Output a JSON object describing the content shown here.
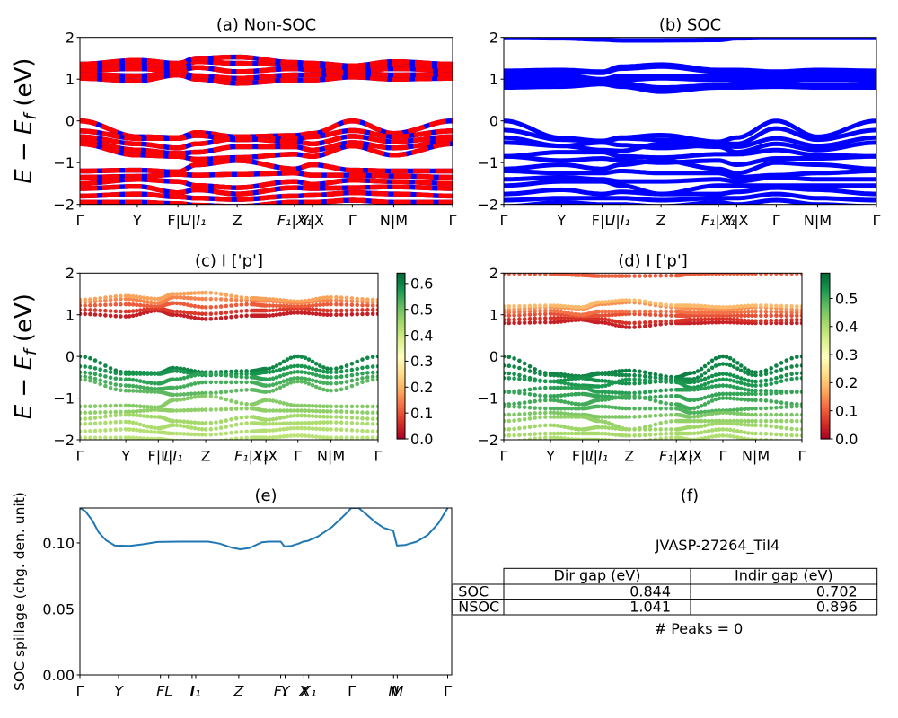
{
  "figure": {
    "background": "#ffffff"
  },
  "chart_data": [
    {
      "panel": "a",
      "type": "line",
      "subtype": "band-structure",
      "title": "(a) Non-SOC",
      "xlabel": "",
      "ylabel": {
        "main": "E − E",
        "sub": "f",
        "unit": " (eV)"
      },
      "xlim": [
        0,
        1
      ],
      "ylim": [
        -2,
        2
      ],
      "yticks": [
        -2,
        -1,
        0,
        1,
        2
      ],
      "yticklabels": [
        "−2",
        "−1",
        "0",
        "1",
        "2"
      ],
      "grid": false,
      "kpath": {
        "labels": [
          "Γ",
          "Y",
          "F|L",
          "I|I₁",
          "Z",
          "F₁|X₁",
          "Y|X",
          "Γ",
          "N|M",
          "Γ"
        ],
        "positions": [
          0,
          0.154,
          0.263,
          0.313,
          0.422,
          0.576,
          0.624,
          0.731,
          0.842,
          1.0
        ]
      },
      "line_color": "#ff0000",
      "dash_color": "#0000ff",
      "bands": [
        [
          1.02,
          0.96,
          1.1,
          1.0,
          0.9,
          0.98,
          0.98,
          1.05,
          1.0,
          1.02
        ],
        [
          1.12,
          1.08,
          1.15,
          1.08,
          1.02,
          1.1,
          1.1,
          1.15,
          1.1,
          1.12
        ],
        [
          1.22,
          1.25,
          1.2,
          1.28,
          1.18,
          1.25,
          1.22,
          1.2,
          1.25,
          1.22
        ],
        [
          1.3,
          1.38,
          1.28,
          1.42,
          1.38,
          1.35,
          1.33,
          1.28,
          1.35,
          1.3
        ],
        [
          1.36,
          1.45,
          1.38,
          1.5,
          1.53,
          1.4,
          1.38,
          1.32,
          1.42,
          1.36
        ],
        [
          0.0,
          -0.38,
          -0.4,
          -0.28,
          -0.38,
          -0.35,
          -0.3,
          0.0,
          -0.3,
          0.0
        ],
        [
          -0.24,
          -0.42,
          -0.42,
          -0.35,
          -0.45,
          -0.42,
          -0.38,
          -0.23,
          -0.38,
          -0.24
        ],
        [
          -0.38,
          -0.55,
          -0.65,
          -0.55,
          -0.42,
          -0.5,
          -0.55,
          -0.37,
          -0.5,
          -0.38
        ],
        [
          -0.48,
          -0.7,
          -0.78,
          -0.75,
          -0.62,
          -0.62,
          -0.7,
          -0.52,
          -0.65,
          -0.48
        ],
        [
          -0.55,
          -0.82,
          -0.85,
          -0.92,
          -0.88,
          -0.8,
          -0.85,
          -0.6,
          -0.82,
          -0.55
        ],
        [
          -1.2,
          -1.18,
          -1.22,
          -1.05,
          -0.95,
          -1.15,
          -1.05,
          -1.18,
          -1.2,
          -1.2
        ],
        [
          -1.35,
          -1.33,
          -1.28,
          -1.3,
          -1.28,
          -1.25,
          -1.3,
          -1.3,
          -1.32,
          -1.35
        ],
        [
          -1.5,
          -1.4,
          -1.45,
          -1.55,
          -1.6,
          -1.45,
          -1.52,
          -1.42,
          -1.45,
          -1.5
        ],
        [
          -1.62,
          -1.57,
          -1.72,
          -1.65,
          -1.75,
          -1.6,
          -1.62,
          -1.6,
          -1.58,
          -1.62
        ],
        [
          -1.8,
          -1.75,
          -1.82,
          -1.85,
          -1.88,
          -1.8,
          -1.78,
          -1.72,
          -1.75,
          -1.8
        ],
        [
          -1.95,
          -1.95,
          -1.98,
          -2.02,
          -2.05,
          -1.95,
          -1.95,
          -1.9,
          -1.95,
          -1.95
        ]
      ]
    },
    {
      "panel": "b",
      "type": "line",
      "subtype": "band-structure",
      "title": "(b) SOC",
      "xlabel": "",
      "xlim": [
        0,
        1
      ],
      "ylim": [
        -2,
        2
      ],
      "yticks": [
        -2,
        -1,
        0,
        1,
        2
      ],
      "yticklabels": [
        "−2",
        "−1",
        "0",
        "1",
        "2"
      ],
      "grid": false,
      "kpath": {
        "labels": [
          "Γ",
          "Y",
          "F|L",
          "I|I₁",
          "Z",
          "F₁|X₁",
          "Y|X",
          "Γ",
          "N|M",
          "Γ"
        ],
        "positions": [
          0,
          0.155,
          0.264,
          0.314,
          0.422,
          0.576,
          0.625,
          0.731,
          0.842,
          1.0
        ]
      },
      "line_color": "#0000ff",
      "bands": [
        [
          0.8,
          0.82,
          0.88,
          0.82,
          0.7,
          0.8,
          0.8,
          0.82,
          0.8,
          0.8
        ],
        [
          0.88,
          0.92,
          0.93,
          0.9,
          0.8,
          0.85,
          0.88,
          0.9,
          0.85,
          0.88
        ],
        [
          0.98,
          1.02,
          0.97,
          0.98,
          1.02,
          0.98,
          0.98,
          0.98,
          0.98,
          0.98
        ],
        [
          1.05,
          1.1,
          1.0,
          1.08,
          1.08,
          1.08,
          1.05,
          1.05,
          1.08,
          1.05
        ],
        [
          1.12,
          1.18,
          1.15,
          1.25,
          1.3,
          1.18,
          1.15,
          1.12,
          1.18,
          1.12
        ],
        [
          1.2,
          1.22,
          1.18,
          1.3,
          1.35,
          1.22,
          1.22,
          1.18,
          1.22,
          1.2
        ],
        [
          1.99,
          1.98,
          1.95,
          1.93,
          1.93,
          1.94,
          1.98,
          1.99,
          1.99,
          1.99
        ],
        [
          0.0,
          -0.41,
          -0.48,
          -0.4,
          -0.34,
          -0.5,
          -0.4,
          0.0,
          -0.38,
          0.0
        ],
        [
          -0.22,
          -0.45,
          -0.5,
          -0.42,
          -0.45,
          -0.55,
          -0.55,
          -0.18,
          -0.45,
          -0.22
        ],
        [
          -0.4,
          -0.6,
          -0.52,
          -0.58,
          -0.65,
          -0.58,
          -0.62,
          -0.42,
          -0.6,
          -0.4
        ],
        [
          -0.52,
          -0.6,
          -0.7,
          -0.72,
          -0.55,
          -0.62,
          -0.75,
          -0.55,
          -0.7,
          -0.52
        ],
        [
          -0.85,
          -0.75,
          -0.75,
          -0.85,
          -0.88,
          -0.8,
          -0.8,
          -0.7,
          -0.82,
          -0.85
        ],
        [
          -0.85,
          -0.95,
          -0.9,
          -0.95,
          -1.0,
          -0.95,
          -1.05,
          -0.9,
          -0.9,
          -0.85
        ],
        [
          -1.15,
          -1.05,
          -1.15,
          -1.05,
          -0.95,
          -1.15,
          -1.25,
          -1.0,
          -1.05,
          -1.15
        ],
        [
          -1.2,
          -1.25,
          -1.25,
          -1.2,
          -1.25,
          -1.25,
          -1.35,
          -1.3,
          -1.25,
          -1.2
        ],
        [
          -1.4,
          -1.35,
          -1.4,
          -1.45,
          -1.45,
          -1.4,
          -1.45,
          -1.35,
          -1.4,
          -1.4
        ],
        [
          -1.55,
          -1.45,
          -1.45,
          -1.55,
          -1.75,
          -1.55,
          -1.55,
          -1.55,
          -1.55,
          -1.55
        ],
        [
          -1.75,
          -1.65,
          -1.75,
          -1.7,
          -1.75,
          -1.75,
          -1.7,
          -1.6,
          -1.65,
          -1.75
        ],
        [
          -1.9,
          -1.85,
          -1.85,
          -1.85,
          -1.9,
          -1.85,
          -1.85,
          -1.75,
          -1.85,
          -1.9
        ],
        [
          -2.05,
          -1.95,
          -2.0,
          -2.0,
          -2.05,
          -1.95,
          -2.0,
          -1.9,
          -2.0,
          -2.05
        ]
      ]
    },
    {
      "panel": "c",
      "type": "scatter",
      "subtype": "projected-band-structure",
      "title": "(c)  I ['p']",
      "xlabel": "",
      "ylabel": {
        "main": "E − E",
        "sub": "f",
        "unit": " (eV)"
      },
      "xlim": [
        0,
        1
      ],
      "ylim": [
        -2,
        2
      ],
      "yticks": [
        -2,
        -1,
        0,
        1,
        2
      ],
      "yticklabels": [
        "−2",
        "−1",
        "0",
        "1",
        "2"
      ],
      "grid": false,
      "kpath": {
        "labels": [
          "Γ",
          "Y",
          "F|L",
          "I|I₁",
          "Z",
          "F₁|X₁",
          "Y|X",
          "Γ",
          "N|M",
          "Γ"
        ],
        "positions": [
          0,
          0.154,
          0.263,
          0.313,
          0.422,
          0.576,
          0.624,
          0.731,
          0.842,
          1.0
        ]
      },
      "bands_ref": 0,
      "weights": [
        0.04,
        0.07,
        0.11,
        0.15,
        0.18,
        0.6,
        0.58,
        0.56,
        0.54,
        0.52,
        0.48,
        0.47,
        0.45,
        0.44,
        0.43,
        0.42
      ],
      "colormap": {
        "name": "RdYlGn",
        "stops": [
          "#a50026",
          "#d73027",
          "#f46d43",
          "#fdae61",
          "#fee08b",
          "#ffffbf",
          "#d9ef8b",
          "#a6d96a",
          "#66bd63",
          "#1a9850",
          "#006837"
        ]
      },
      "colorbar": {
        "min": 0.0,
        "max": 0.64,
        "ticks": [
          0.0,
          0.1,
          0.2,
          0.3,
          0.4,
          0.5,
          0.6
        ],
        "ticklabels": [
          "0.0",
          "0.1",
          "0.2",
          "0.3",
          "0.4",
          "0.5",
          "0.6"
        ]
      }
    },
    {
      "panel": "d",
      "type": "scatter",
      "subtype": "projected-band-structure",
      "title": "(d) I ['p']",
      "xlabel": "",
      "xlim": [
        0,
        1
      ],
      "ylim": [
        -2,
        2
      ],
      "yticks": [
        -2,
        -1,
        0,
        1,
        2
      ],
      "yticklabels": [
        "−2",
        "−1",
        "0",
        "1",
        "2"
      ],
      "grid": false,
      "kpath": {
        "labels": [
          "Γ",
          "Y",
          "F|L",
          "I|I₁",
          "Z",
          "F₁|X₁",
          "Y|X",
          "Γ",
          "N|M",
          "Γ"
        ],
        "positions": [
          0,
          0.157,
          0.264,
          0.318,
          0.421,
          0.579,
          0.627,
          0.735,
          0.845,
          1.0
        ]
      },
      "bands_ref": 1,
      "weights": [
        0.04,
        0.06,
        0.09,
        0.12,
        0.15,
        0.19,
        0.1,
        0.56,
        0.55,
        0.54,
        0.53,
        0.52,
        0.51,
        0.5,
        0.49,
        0.45,
        0.43,
        0.42,
        0.41,
        0.4
      ],
      "colormap": {
        "name": "RdYlGn",
        "stops": [
          "#a50026",
          "#d73027",
          "#f46d43",
          "#fdae61",
          "#fee08b",
          "#ffffbf",
          "#d9ef8b",
          "#a6d96a",
          "#66bd63",
          "#1a9850",
          "#006837"
        ]
      },
      "colorbar": {
        "min": 0.0,
        "max": 0.59,
        "ticks": [
          0.0,
          0.1,
          0.2,
          0.3,
          0.4,
          0.5
        ],
        "ticklabels": [
          "0.0",
          "0.1",
          "0.2",
          "0.3",
          "0.4",
          "0.5"
        ]
      }
    },
    {
      "panel": "e",
      "type": "line",
      "title": "(e)",
      "xlabel": "",
      "ylabel": "SOC spillage (chg. den. unit)",
      "xlim": [
        0,
        1.011
      ],
      "ylim": [
        0,
        0.1265
      ],
      "yticks": [
        0.0,
        0.05,
        0.1
      ],
      "yticklabels": [
        "0.00",
        "0.05",
        "0.10"
      ],
      "grid": false,
      "xticks": {
        "labels": [
          "Γ",
          "Y",
          "F",
          "L",
          "I",
          "I₁",
          "Z",
          "F₁",
          "Y",
          "X",
          "X₁",
          "Γ",
          "N",
          "M",
          "Γ"
        ],
        "positions": [
          0,
          0.105,
          0.219,
          0.241,
          0.305,
          0.315,
          0.432,
          0.546,
          0.558,
          0.609,
          0.622,
          0.739,
          0.853,
          0.863,
          1.0
        ]
      },
      "series": [
        {
          "name": "SOC spillage",
          "color": "#1f77b4",
          "x": [
            0,
            0.015,
            0.034,
            0.051,
            0.071,
            0.095,
            0.136,
            0.173,
            0.21,
            0.271,
            0.349,
            0.38,
            0.412,
            0.436,
            0.461,
            0.495,
            0.514,
            0.546,
            0.556,
            0.575,
            0.595,
            0.607,
            0.619,
            0.648,
            0.685,
            0.721,
            0.738,
            0.758,
            0.782,
            0.802,
            0.826,
            0.848,
            0.852,
            0.862,
            0.885,
            0.916,
            0.946,
            0.975,
            1.0
          ],
          "y": [
            0.1265,
            0.124,
            0.117,
            0.108,
            0.102,
            0.098,
            0.0978,
            0.099,
            0.1007,
            0.101,
            0.101,
            0.0995,
            0.0965,
            0.0952,
            0.0962,
            0.1005,
            0.101,
            0.101,
            0.0973,
            0.0978,
            0.0995,
            0.101,
            0.1015,
            0.105,
            0.112,
            0.1215,
            0.1265,
            0.1265,
            0.121,
            0.116,
            0.1115,
            0.1095,
            0.1092,
            0.098,
            0.0985,
            0.101,
            0.106,
            0.115,
            0.1265
          ]
        }
      ]
    },
    {
      "panel": "f",
      "type": "table",
      "title": "(f)",
      "subtitle": "JVASP-27264_TiI4",
      "columns": [
        "Dir gap (eV)",
        "Indir gap (eV)"
      ],
      "rows": [
        {
          "label": "SOC",
          "values": [
            "0.844",
            "0.702"
          ]
        },
        {
          "label": "NSOC",
          "values": [
            "1.041",
            "0.896"
          ]
        }
      ],
      "footer": "# Peaks = 0"
    }
  ]
}
